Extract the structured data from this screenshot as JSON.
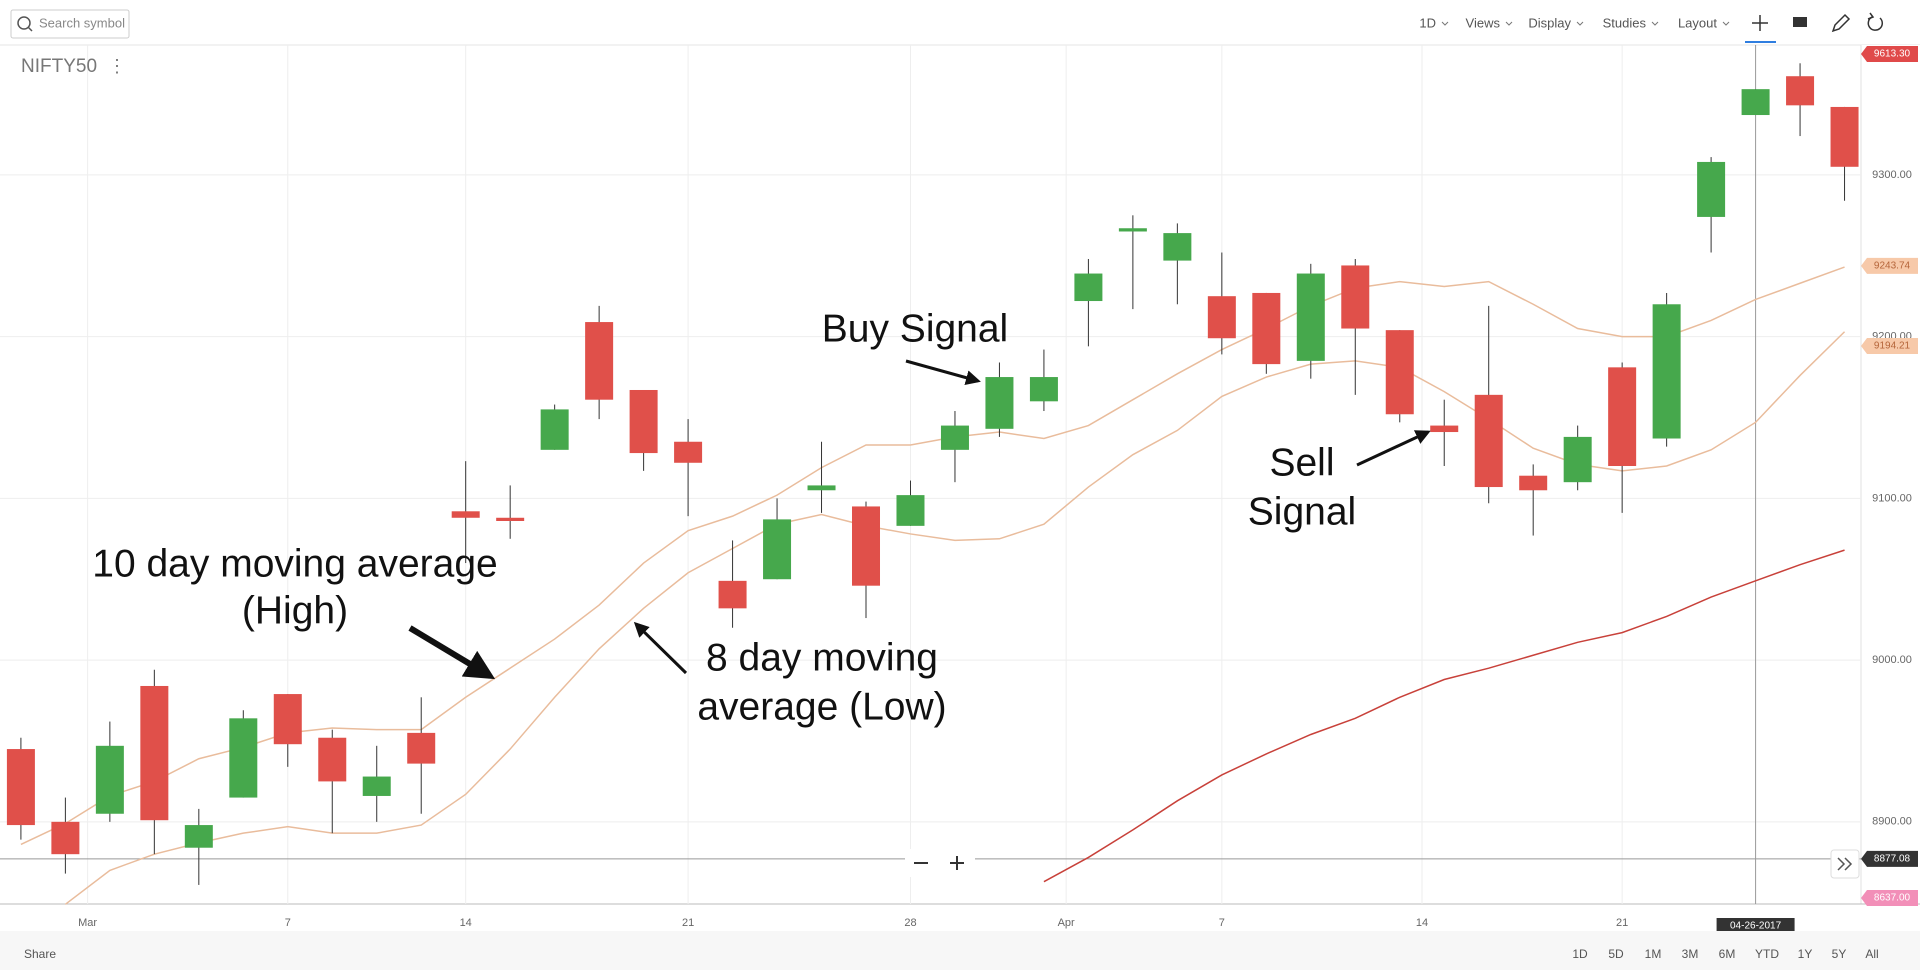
{
  "toolbar": {
    "search_placeholder": "Search symbol",
    "menus": [
      "1D",
      "Views",
      "Display",
      "Studies",
      "Layout"
    ]
  },
  "symbol": "NIFTY50",
  "footer": {
    "share": "Share",
    "ranges": [
      "1D",
      "5D",
      "1M",
      "3M",
      "6M",
      "YTD",
      "1Y",
      "5Y",
      "All"
    ]
  },
  "chart_data": {
    "type": "candlestick",
    "categories": [
      null,
      null,
      null,
      null,
      null,
      null,
      null,
      null,
      null,
      null,
      null,
      null,
      null,
      null,
      null,
      null,
      null,
      null,
      null,
      null,
      null,
      null,
      null,
      null,
      null,
      null,
      null,
      null,
      null,
      null,
      null,
      null,
      null,
      null,
      null,
      null,
      null,
      null,
      null,
      null,
      null,
      null
    ],
    "open": [
      8945,
      8900,
      8905,
      8984,
      8884,
      8915,
      8979,
      8952,
      8916,
      8955,
      9092,
      9088,
      9130,
      9209,
      9167,
      9135,
      9049,
      9050,
      9105,
      9095,
      9083,
      9130,
      9143,
      9160,
      9222,
      9265,
      9247,
      9225,
      9227,
      9185,
      9244,
      9204,
      9145,
      9164,
      9114,
      9110,
      9181,
      9137,
      9274,
      9337,
      9361,
      9342
    ],
    "high": [
      8952,
      8915,
      8962,
      8994,
      8908,
      8969,
      8979,
      8957,
      8947,
      8977,
      9123,
      9108,
      9158,
      9219,
      9167,
      9149,
      9074,
      9100,
      9135,
      9098,
      9111,
      9154,
      9184,
      9192,
      9248,
      9275,
      9270,
      9252,
      9227,
      9245,
      9248,
      9204,
      9161,
      9219,
      9121,
      9145,
      9184,
      9227,
      9311,
      9353,
      9369,
      9342
    ],
    "low": [
      8889,
      8868,
      8900,
      8880,
      8861,
      8915,
      8934,
      8893,
      8900,
      8905,
      9060,
      9075,
      9130,
      9149,
      9117,
      9089,
      9020,
      9050,
      9091,
      9026,
      9083,
      9110,
      9138,
      9154,
      9194,
      9217,
      9220,
      9189,
      9177,
      9174,
      9164,
      9147,
      9120,
      9097,
      9077,
      9105,
      9091,
      9132,
      9252,
      9337,
      9324,
      9284
    ],
    "close": [
      8898,
      8880,
      8947,
      8901,
      8898,
      8964,
      8948,
      8925,
      8928,
      8936,
      9088,
      9086,
      9155,
      9161,
      9128,
      9122,
      9032,
      9087,
      9108,
      9046,
      9102,
      9145,
      9175,
      9175,
      9239,
      9267,
      9264,
      9199,
      9183,
      9239,
      9205,
      9152,
      9141,
      9107,
      9105,
      9138,
      9120,
      9220,
      9308,
      9353,
      9343,
      9305
    ],
    "up_color": "#46a84c",
    "down_color": "#e0504a",
    "series": [
      {
        "color": "#e9bc9c",
        "values": [
          8886,
          8899,
          8916,
          8925,
          8939,
          8946,
          8955,
          8958,
          8957,
          8957,
          8977,
          8995,
          9013,
          9034,
          9060,
          9080,
          9089,
          9102,
          9119,
          9133,
          9133,
          9138,
          9141,
          9137,
          9145,
          9161,
          9177,
          9192,
          9205,
          9219,
          9230,
          9234,
          9231,
          9234,
          9220,
          9205,
          9200,
          9200,
          9210,
          9223,
          9233,
          9243
        ]
      },
      {
        "color": "#e9bc9c",
        "values": [
          null,
          8849,
          8870,
          8880,
          8887,
          8893,
          8897,
          8893,
          8893,
          8898,
          8917,
          8945,
          8977,
          9007,
          9032,
          9054,
          9069,
          9084,
          9090,
          9083,
          9078,
          9074,
          9075,
          9084,
          9107,
          9127,
          9142,
          9163,
          9175,
          9183,
          9185,
          9181,
          9166,
          9149,
          9131,
          9121,
          9117,
          9120,
          9130,
          9147,
          9176,
          9203
        ]
      },
      {
        "color": "#c8413a",
        "values": [
          null,
          null,
          null,
          null,
          null,
          null,
          null,
          null,
          null,
          null,
          null,
          null,
          null,
          null,
          null,
          null,
          null,
          null,
          null,
          null,
          null,
          null,
          null,
          8863,
          8878,
          8895,
          8913,
          8929,
          8942,
          8954,
          8964,
          8977,
          8988,
          8995,
          9003,
          9011,
          9017,
          9027,
          9039,
          9049,
          9059,
          9068
        ]
      }
    ],
    "xlim": [
      -0.47,
      41.37
    ],
    "xticks": [
      {
        "value": 1.5,
        "label": "Mar"
      },
      {
        "value": 6,
        "label": "7"
      },
      {
        "value": 10,
        "label": "14"
      },
      {
        "value": 15,
        "label": "21"
      },
      {
        "value": 20,
        "label": "28"
      },
      {
        "value": 23.5,
        "label": "Apr"
      },
      {
        "value": 27,
        "label": "7"
      },
      {
        "value": 31.5,
        "label": "14"
      },
      {
        "value": 36,
        "label": "21"
      }
    ],
    "ylim": [
      8849.2,
      9380.3
    ],
    "yticks": [
      {
        "value": 8900,
        "label": "8900.00"
      },
      {
        "value": 9000,
        "label": "9000.00"
      },
      {
        "value": 9100,
        "label": "9100.00"
      },
      {
        "value": 9200,
        "label": "9200.00"
      },
      {
        "value": 9300,
        "label": "9300.00"
      }
    ],
    "grid": true,
    "price_tags": [
      {
        "label": "9613.30",
        "color": "#e04a4a",
        "pin": "top"
      },
      {
        "value": 9243.74,
        "label": "9243.74",
        "color": "#f7c9a9"
      },
      {
        "value": 9194.21,
        "label": "9194.21",
        "color": "#f7c9a9"
      },
      {
        "value": 8877.08,
        "label": "8877.08",
        "color": "#333333"
      },
      {
        "label": "8637.00",
        "color": "#f28fb8",
        "pin": "bottom"
      }
    ],
    "crosshair": {
      "x": 39,
      "label": "04-26-2017",
      "y": 8877.08
    },
    "annotations": [
      {
        "lines": [
          "Buy Signal"
        ]
      },
      {
        "lines": [
          "Sell",
          "Signal"
        ]
      },
      {
        "lines": [
          "10 day moving average",
          "(High)"
        ]
      },
      {
        "lines": [
          "8 day moving",
          "average (Low)"
        ]
      }
    ]
  }
}
